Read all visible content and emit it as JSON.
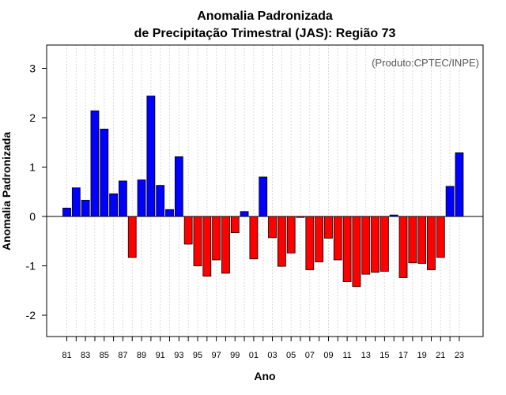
{
  "chart_data": {
    "type": "bar",
    "title_line1": "Anomalia Padronizada",
    "title_line2": "de Precipitação Trimestral (JAS): Região 73",
    "xlabel": "Ano",
    "ylabel": "Anomalia Padronizada",
    "credit": "(Produto:CPTEC/INPE)",
    "ylim": [
      -2.4,
      3.45
    ],
    "yticks": [
      -2,
      -1,
      0,
      1,
      2,
      3
    ],
    "ytick_labels": [
      "-2",
      "-1",
      "0",
      "1",
      "2",
      "3"
    ],
    "x_tick_labels": [
      "81",
      "83",
      "85",
      "87",
      "89",
      "91",
      "93",
      "95",
      "97",
      "99",
      "01",
      "03",
      "05",
      "07",
      "09",
      "11",
      "13",
      "15",
      "17",
      "19",
      "21",
      "23"
    ],
    "categories": [
      "1981",
      "1982",
      "1983",
      "1984",
      "1985",
      "1986",
      "1987",
      "1988",
      "1989",
      "1990",
      "1991",
      "1992",
      "1993",
      "1994",
      "1995",
      "1996",
      "1997",
      "1998",
      "1999",
      "2000",
      "2001",
      "2002",
      "2003",
      "2004",
      "2005",
      "2006",
      "2007",
      "2008",
      "2009",
      "2010",
      "2011",
      "2012",
      "2013",
      "2014",
      "2015",
      "2016",
      "2017",
      "2018",
      "2019",
      "2020",
      "2021",
      "2022",
      "2023"
    ],
    "values": [
      0.17,
      0.58,
      0.33,
      2.14,
      1.77,
      0.46,
      0.72,
      -0.83,
      0.74,
      2.44,
      0.63,
      0.14,
      1.21,
      -0.56,
      -1.0,
      -1.21,
      -0.88,
      -1.15,
      -0.33,
      0.1,
      -0.86,
      0.8,
      -0.43,
      -1.01,
      -0.74,
      -0.02,
      -1.08,
      -0.92,
      -0.44,
      -0.88,
      -1.32,
      -1.42,
      -1.17,
      -1.13,
      -1.11,
      0.03,
      -1.24,
      -0.94,
      -0.95,
      -1.08,
      -0.83,
      0.61,
      1.29
    ],
    "positive_color": "#0000ff",
    "negative_color": "#ff0000",
    "grid": true
  }
}
